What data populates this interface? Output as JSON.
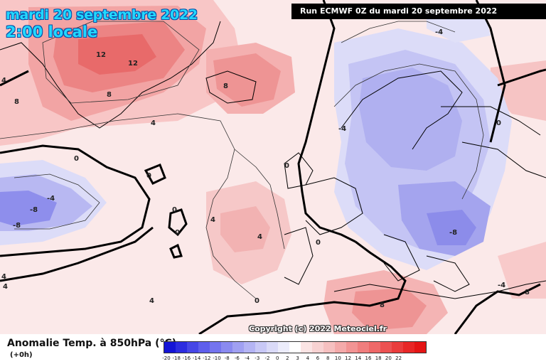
{
  "header": {
    "date": "mardi 20 septembre 2022",
    "time": "2:00 locale",
    "run": "Run ECMWF 0Z du mardi 20 septembre 2022"
  },
  "map": {
    "copyright": "Copyright (c) 2022 Meteociel.fr",
    "contour_labels": [
      "12",
      "12",
      "8",
      "8",
      "8",
      "4",
      "4",
      "4",
      "4",
      "4",
      "4",
      "4",
      "0",
      "0",
      "0",
      "0",
      "0",
      "0",
      "0",
      "0",
      "-4",
      "-4",
      "-4",
      "-4",
      "-8",
      "-8",
      "-8",
      "8",
      "8"
    ]
  },
  "legend": {
    "title": "Anomalie Temp. à 850hPa (°C)",
    "subtitle": "(+0h)",
    "ticks": [
      "-20",
      "-18",
      "-16",
      "-14",
      "-12",
      "-10",
      "-8",
      "-6",
      "-4",
      "-3",
      "-2",
      "0",
      "2",
      "3",
      "4",
      "6",
      "8",
      "10",
      "12",
      "14",
      "16",
      "18",
      "20",
      "22"
    ],
    "colors": [
      "#1414d6",
      "#2c2ce0",
      "#4646e6",
      "#5e5eec",
      "#7474ee",
      "#8a8af0",
      "#a0a0f2",
      "#b4b4f4",
      "#c8c8f6",
      "#dadaf8",
      "#ececfb",
      "#ffffff",
      "#fbe4e4",
      "#f8d2d2",
      "#f6c0c0",
      "#f4aaaa",
      "#f29494",
      "#f07e7e",
      "#ee6868",
      "#ec5252",
      "#ea3c3c",
      "#e82626",
      "#e41414"
    ]
  }
}
